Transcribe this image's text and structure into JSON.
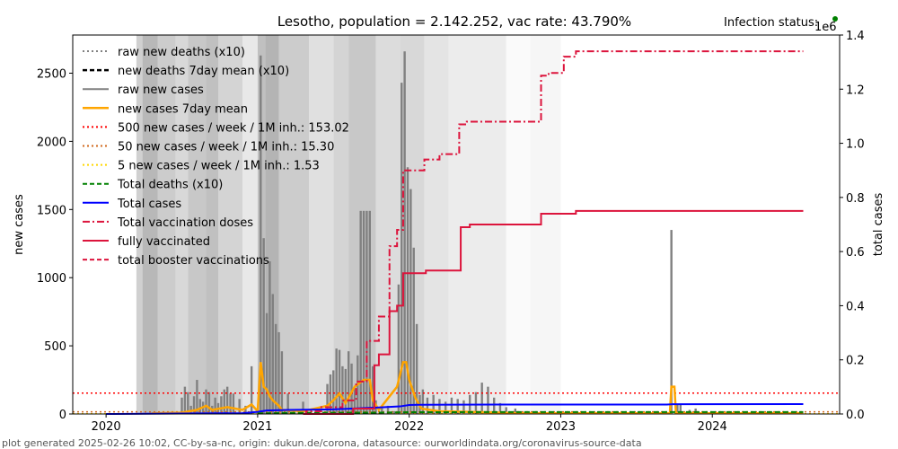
{
  "chart_data": {
    "type": "bar",
    "title": "Lesotho, population = 2.142.252, vac rate: 43.790%",
    "status_label": "Infection status:",
    "right_axis_multiplier": "1e6",
    "xlabel": "",
    "ylabel_left": "new cases",
    "ylabel_right": "total cases",
    "xlim": [
      2019.78,
      2024.84
    ],
    "ylim_left": [
      0,
      2780
    ],
    "ylim_right": [
      0,
      1400000
    ],
    "x_ticks": [
      {
        "value": 2020,
        "label": "2020"
      },
      {
        "value": 2021,
        "label": "2021"
      },
      {
        "value": 2022,
        "label": "2022"
      },
      {
        "value": 2023,
        "label": "2023"
      },
      {
        "value": 2024,
        "label": "2024"
      }
    ],
    "y_left_ticks": [
      {
        "value": 0,
        "label": "0"
      },
      {
        "value": 500,
        "label": "500"
      },
      {
        "value": 1000,
        "label": "1000"
      },
      {
        "value": 1500,
        "label": "1500"
      },
      {
        "value": 2000,
        "label": "2000"
      },
      {
        "value": 2500,
        "label": "2500"
      }
    ],
    "y_right_ticks": [
      {
        "value": 0,
        "label": "0.0"
      },
      {
        "value": 200000,
        "label": "0.2"
      },
      {
        "value": 400000,
        "label": "0.4"
      },
      {
        "value": 600000,
        "label": "0.6"
      },
      {
        "value": 800000,
        "label": "0.8"
      },
      {
        "value": 1000000,
        "label": "1.0"
      },
      {
        "value": 1200000,
        "label": "1.2"
      },
      {
        "value": 1400000,
        "label": "1.4"
      }
    ],
    "legend_position": "top-left",
    "legend": [
      {
        "label": "raw new deaths (x10)",
        "color": "#808080",
        "style": "dotted"
      },
      {
        "label": "new deaths 7day mean (x10)",
        "color": "#000000",
        "style": "dashed"
      },
      {
        "label": "raw new cases",
        "color": "#808080",
        "style": "solid"
      },
      {
        "label": "new cases 7day mean",
        "color": "#ffa500",
        "style": "solid"
      },
      {
        "label": "500 new cases / week / 1M inh.: 153.02",
        "color": "#ff0000",
        "style": "dotted"
      },
      {
        "label": "50 new cases / week / 1M inh.: 15.30",
        "color": "#d2691e",
        "style": "dotted"
      },
      {
        "label": "5 new cases / week / 1M inh.: 1.53",
        "color": "#ffd700",
        "style": "dotted"
      },
      {
        "label": "Total deaths (x10)",
        "color": "#008000",
        "style": "dashed"
      },
      {
        "label": "Total cases",
        "color": "#0000ff",
        "style": "solid"
      },
      {
        "label": "Total vaccination doses",
        "color": "#dc143c",
        "style": "dashdot"
      },
      {
        "label": "fully vaccinated",
        "color": "#dc143c",
        "style": "solid"
      },
      {
        "label": "total booster vaccinations",
        "color": "#dc143c",
        "style": "dashed"
      }
    ],
    "thresholds": [
      {
        "name": "500 per week per 1M",
        "value": 153.02,
        "color": "#ff0000"
      },
      {
        "name": "50 per week per 1M",
        "value": 15.3,
        "color": "#d2691e"
      },
      {
        "name": "5 per week per 1M",
        "value": 1.53,
        "color": "#ffd700"
      }
    ],
    "background_bands": [
      {
        "x0": 2020.2,
        "x1": 2020.24,
        "shade": "#d0d0d0"
      },
      {
        "x0": 2020.24,
        "x1": 2020.34,
        "shade": "#b8b8b8"
      },
      {
        "x0": 2020.34,
        "x1": 2020.46,
        "shade": "#cccccc"
      },
      {
        "x0": 2020.46,
        "x1": 2020.54,
        "shade": "#d8d8d8"
      },
      {
        "x0": 2020.54,
        "x1": 2020.66,
        "shade": "#c8c8c8"
      },
      {
        "x0": 2020.66,
        "x1": 2020.74,
        "shade": "#c0c0c0"
      },
      {
        "x0": 2020.74,
        "x1": 2020.9,
        "shade": "#d4d4d4"
      },
      {
        "x0": 2020.9,
        "x1": 2021.0,
        "shade": "#e8e8e8"
      },
      {
        "x0": 2021.0,
        "x1": 2021.05,
        "shade": "#c0c0c0"
      },
      {
        "x0": 2021.05,
        "x1": 2021.14,
        "shade": "#b4b4b4"
      },
      {
        "x0": 2021.14,
        "x1": 2021.34,
        "shade": "#cccccc"
      },
      {
        "x0": 2021.34,
        "x1": 2021.5,
        "shade": "#e0e0e0"
      },
      {
        "x0": 2021.5,
        "x1": 2021.6,
        "shade": "#d4d4d4"
      },
      {
        "x0": 2021.6,
        "x1": 2021.78,
        "shade": "#c8c8c8"
      },
      {
        "x0": 2021.78,
        "x1": 2021.94,
        "shade": "#dcdcdc"
      },
      {
        "x0": 2021.94,
        "x1": 2022.1,
        "shade": "#d8d8d8"
      },
      {
        "x0": 2022.1,
        "x1": 2022.26,
        "shade": "#e4e4e4"
      },
      {
        "x0": 2022.26,
        "x1": 2022.64,
        "shade": "#ececec"
      },
      {
        "x0": 2022.64,
        "x1": 2022.8,
        "shade": "#fafafa"
      },
      {
        "x0": 2022.8,
        "x1": 2023.0,
        "shade": "#f6f6f6"
      }
    ],
    "series": [
      {
        "name": "raw new cases",
        "kind": "bars",
        "color": "#808080",
        "points": [
          [
            2020.5,
            120
          ],
          [
            2020.52,
            200
          ],
          [
            2020.54,
            160
          ],
          [
            2020.56,
            60
          ],
          [
            2020.58,
            130
          ],
          [
            2020.6,
            250
          ],
          [
            2020.62,
            110
          ],
          [
            2020.64,
            90
          ],
          [
            2020.66,
            180
          ],
          [
            2020.68,
            160
          ],
          [
            2020.7,
            60
          ],
          [
            2020.72,
            120
          ],
          [
            2020.74,
            80
          ],
          [
            2020.76,
            130
          ],
          [
            2020.78,
            180
          ],
          [
            2020.8,
            200
          ],
          [
            2020.82,
            150
          ],
          [
            2020.84,
            150
          ],
          [
            2020.88,
            110
          ],
          [
            2020.92,
            60
          ],
          [
            2020.96,
            350
          ],
          [
            2021.0,
            40
          ],
          [
            2021.02,
            2630
          ],
          [
            2021.04,
            1290
          ],
          [
            2021.06,
            740
          ],
          [
            2021.08,
            1120
          ],
          [
            2021.1,
            880
          ],
          [
            2021.12,
            660
          ],
          [
            2021.14,
            600
          ],
          [
            2021.16,
            460
          ],
          [
            2021.2,
            150
          ],
          [
            2021.3,
            90
          ],
          [
            2021.46,
            220
          ],
          [
            2021.48,
            290
          ],
          [
            2021.5,
            320
          ],
          [
            2021.52,
            480
          ],
          [
            2021.54,
            470
          ],
          [
            2021.56,
            350
          ],
          [
            2021.58,
            330
          ],
          [
            2021.6,
            460
          ],
          [
            2021.62,
            370
          ],
          [
            2021.64,
            200
          ],
          [
            2021.66,
            430
          ],
          [
            2021.68,
            1490
          ],
          [
            2021.7,
            1490
          ],
          [
            2021.72,
            1490
          ],
          [
            2021.74,
            1490
          ],
          [
            2021.76,
            350
          ],
          [
            2021.78,
            100
          ],
          [
            2021.82,
            50
          ],
          [
            2021.86,
            60
          ],
          [
            2021.9,
            20
          ],
          [
            2021.93,
            950
          ],
          [
            2021.95,
            2430
          ],
          [
            2021.97,
            2660
          ],
          [
            2021.99,
            1810
          ],
          [
            2022.01,
            1650
          ],
          [
            2022.03,
            1220
          ],
          [
            2022.05,
            660
          ],
          [
            2022.07,
            140
          ],
          [
            2022.09,
            180
          ],
          [
            2022.12,
            120
          ],
          [
            2022.16,
            140
          ],
          [
            2022.2,
            110
          ],
          [
            2022.24,
            90
          ],
          [
            2022.28,
            120
          ],
          [
            2022.32,
            110
          ],
          [
            2022.36,
            100
          ],
          [
            2022.4,
            140
          ],
          [
            2022.44,
            160
          ],
          [
            2022.48,
            230
          ],
          [
            2022.52,
            200
          ],
          [
            2022.56,
            120
          ],
          [
            2022.6,
            80
          ],
          [
            2022.64,
            50
          ],
          [
            2022.7,
            40
          ],
          [
            2023.73,
            1350
          ],
          [
            2023.77,
            70
          ],
          [
            2023.79,
            70
          ],
          [
            2023.85,
            30
          ],
          [
            2023.89,
            40
          ]
        ]
      },
      {
        "name": "new cases 7day mean",
        "kind": "line",
        "color": "#ffa500",
        "points": [
          [
            2020.3,
            5
          ],
          [
            2020.5,
            10
          ],
          [
            2020.6,
            30
          ],
          [
            2020.66,
            60
          ],
          [
            2020.7,
            30
          ],
          [
            2020.8,
            50
          ],
          [
            2020.9,
            30
          ],
          [
            2020.96,
            70
          ],
          [
            2021.0,
            20
          ],
          [
            2021.02,
            380
          ],
          [
            2021.04,
            200
          ],
          [
            2021.06,
            180
          ],
          [
            2021.08,
            130
          ],
          [
            2021.1,
            100
          ],
          [
            2021.14,
            60
          ],
          [
            2021.16,
            30
          ],
          [
            2021.3,
            20
          ],
          [
            2021.46,
            60
          ],
          [
            2021.5,
            100
          ],
          [
            2021.54,
            150
          ],
          [
            2021.58,
            80
          ],
          [
            2021.64,
            200
          ],
          [
            2021.7,
            250
          ],
          [
            2021.74,
            250
          ],
          [
            2021.76,
            100
          ],
          [
            2021.8,
            30
          ],
          [
            2021.92,
            200
          ],
          [
            2021.96,
            380
          ],
          [
            2021.98,
            380
          ],
          [
            2022.0,
            250
          ],
          [
            2022.04,
            120
          ],
          [
            2022.08,
            40
          ],
          [
            2022.2,
            20
          ],
          [
            2022.6,
            10
          ],
          [
            2022.7,
            5
          ],
          [
            2023.72,
            5
          ],
          [
            2023.73,
            200
          ],
          [
            2023.75,
            200
          ],
          [
            2023.76,
            5
          ],
          [
            2024.6,
            5
          ]
        ]
      },
      {
        "name": "Total cases",
        "kind": "line",
        "axis": "right",
        "color": "#0000ff",
        "points": [
          [
            2020.0,
            0
          ],
          [
            2020.9,
            3000
          ],
          [
            2021.0,
            8000
          ],
          [
            2021.06,
            13000
          ],
          [
            2021.2,
            15000
          ],
          [
            2021.5,
            17000
          ],
          [
            2021.7,
            22000
          ],
          [
            2021.8,
            24000
          ],
          [
            2021.94,
            28000
          ],
          [
            2022.0,
            33000
          ],
          [
            2022.06,
            34000
          ],
          [
            2022.6,
            35000
          ],
          [
            2023.7,
            35000
          ],
          [
            2023.74,
            36000
          ],
          [
            2024.6,
            36500
          ]
        ]
      },
      {
        "name": "Total deaths (x10)",
        "kind": "line",
        "axis": "right",
        "color": "#008000",
        "points": [
          [
            2021.0,
            2000
          ],
          [
            2021.2,
            4000
          ],
          [
            2021.8,
            5000
          ],
          [
            2022.0,
            6500
          ],
          [
            2022.5,
            7000
          ],
          [
            2024.6,
            7200
          ]
        ]
      },
      {
        "name": "Total vaccination doses",
        "kind": "step",
        "axis": "right",
        "color": "#dc143c",
        "points": [
          [
            2021.3,
            0
          ],
          [
            2021.32,
            10000
          ],
          [
            2021.36,
            10000
          ],
          [
            2021.42,
            25000
          ],
          [
            2021.52,
            25000
          ],
          [
            2021.56,
            50000
          ],
          [
            2021.64,
            50000
          ],
          [
            2021.65,
            120000
          ],
          [
            2021.7,
            120000
          ],
          [
            2021.72,
            270000
          ],
          [
            2021.8,
            360000
          ],
          [
            2021.86,
            360000
          ],
          [
            2021.87,
            620000
          ],
          [
            2021.91,
            620000
          ],
          [
            2021.92,
            680000
          ],
          [
            2021.95,
            680000
          ],
          [
            2021.96,
            900000
          ],
          [
            2022.04,
            900000
          ],
          [
            2022.1,
            940000
          ],
          [
            2022.2,
            960000
          ],
          [
            2022.32,
            960000
          ],
          [
            2022.33,
            1070000
          ],
          [
            2022.38,
            1080000
          ],
          [
            2022.86,
            1080000
          ],
          [
            2022.87,
            1250000
          ],
          [
            2022.92,
            1260000
          ],
          [
            2023.0,
            1260000
          ],
          [
            2023.02,
            1320000
          ],
          [
            2023.1,
            1340000
          ],
          [
            2024.6,
            1340000
          ]
        ]
      },
      {
        "name": "fully vaccinated",
        "kind": "step",
        "axis": "right",
        "color": "#dc143c",
        "points": [
          [
            2021.3,
            0
          ],
          [
            2021.62,
            0
          ],
          [
            2021.63,
            20000
          ],
          [
            2021.76,
            20000
          ],
          [
            2021.77,
            180000
          ],
          [
            2021.8,
            220000
          ],
          [
            2021.86,
            220000
          ],
          [
            2021.87,
            380000
          ],
          [
            2021.92,
            400000
          ],
          [
            2021.95,
            400000
          ],
          [
            2021.96,
            520000
          ],
          [
            2022.1,
            520000
          ],
          [
            2022.11,
            530000
          ],
          [
            2022.33,
            530000
          ],
          [
            2022.34,
            690000
          ],
          [
            2022.4,
            700000
          ],
          [
            2022.86,
            700000
          ],
          [
            2022.87,
            740000
          ],
          [
            2023.0,
            740000
          ],
          [
            2023.1,
            750000
          ],
          [
            2024.6,
            750000
          ]
        ]
      }
    ]
  },
  "footer": "plot generated 2025-02-26 10:02, CC-by-sa-nc, origin: dukun.de/corona, datasource: ourworldindata.org/coronavirus-source-data",
  "status_dot_color": "#008000"
}
